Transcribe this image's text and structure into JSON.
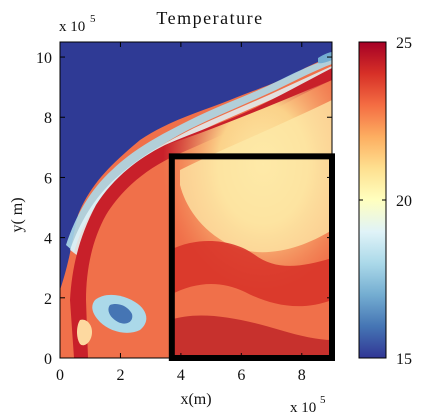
{
  "chart_data": {
    "type": "heatmap",
    "title": "Temperature",
    "xlabel": "x(m)",
    "ylabel": "y( m)",
    "xlim": [
      0,
      900000
    ],
    "ylim": [
      0,
      1050000
    ],
    "x_ticks": [
      0,
      2,
      4,
      6,
      8
    ],
    "y_ticks": [
      0,
      2,
      4,
      6,
      8,
      10
    ],
    "x_multiplier": "x 10",
    "y_multiplier": "x 10",
    "multiplier_exponent": "5",
    "colorbar": {
      "min": 15,
      "max": 25,
      "ticks": [
        15,
        20,
        25
      ]
    },
    "colormap": [
      "#313695",
      "#4575b4",
      "#74add1",
      "#abd9e9",
      "#e0f3f8",
      "#ffffbf",
      "#fee090",
      "#fdae61",
      "#f46d43",
      "#d73027",
      "#a50026"
    ],
    "highlight_box": {
      "x0": 370000,
      "x1": 900000,
      "y0": 0,
      "y1": 670000
    }
  }
}
